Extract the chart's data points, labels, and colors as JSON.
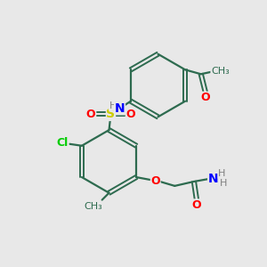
{
  "background_color": "#e8e8e8",
  "bond_color": "#2d6b4f",
  "atom_colors": {
    "N": "#0000ff",
    "H": "#808080",
    "O": "#ff0000",
    "S": "#cccc00",
    "Cl": "#00cc00",
    "C": "#2d6b4f"
  },
  "figsize": [
    3.0,
    3.0
  ],
  "dpi": 100
}
